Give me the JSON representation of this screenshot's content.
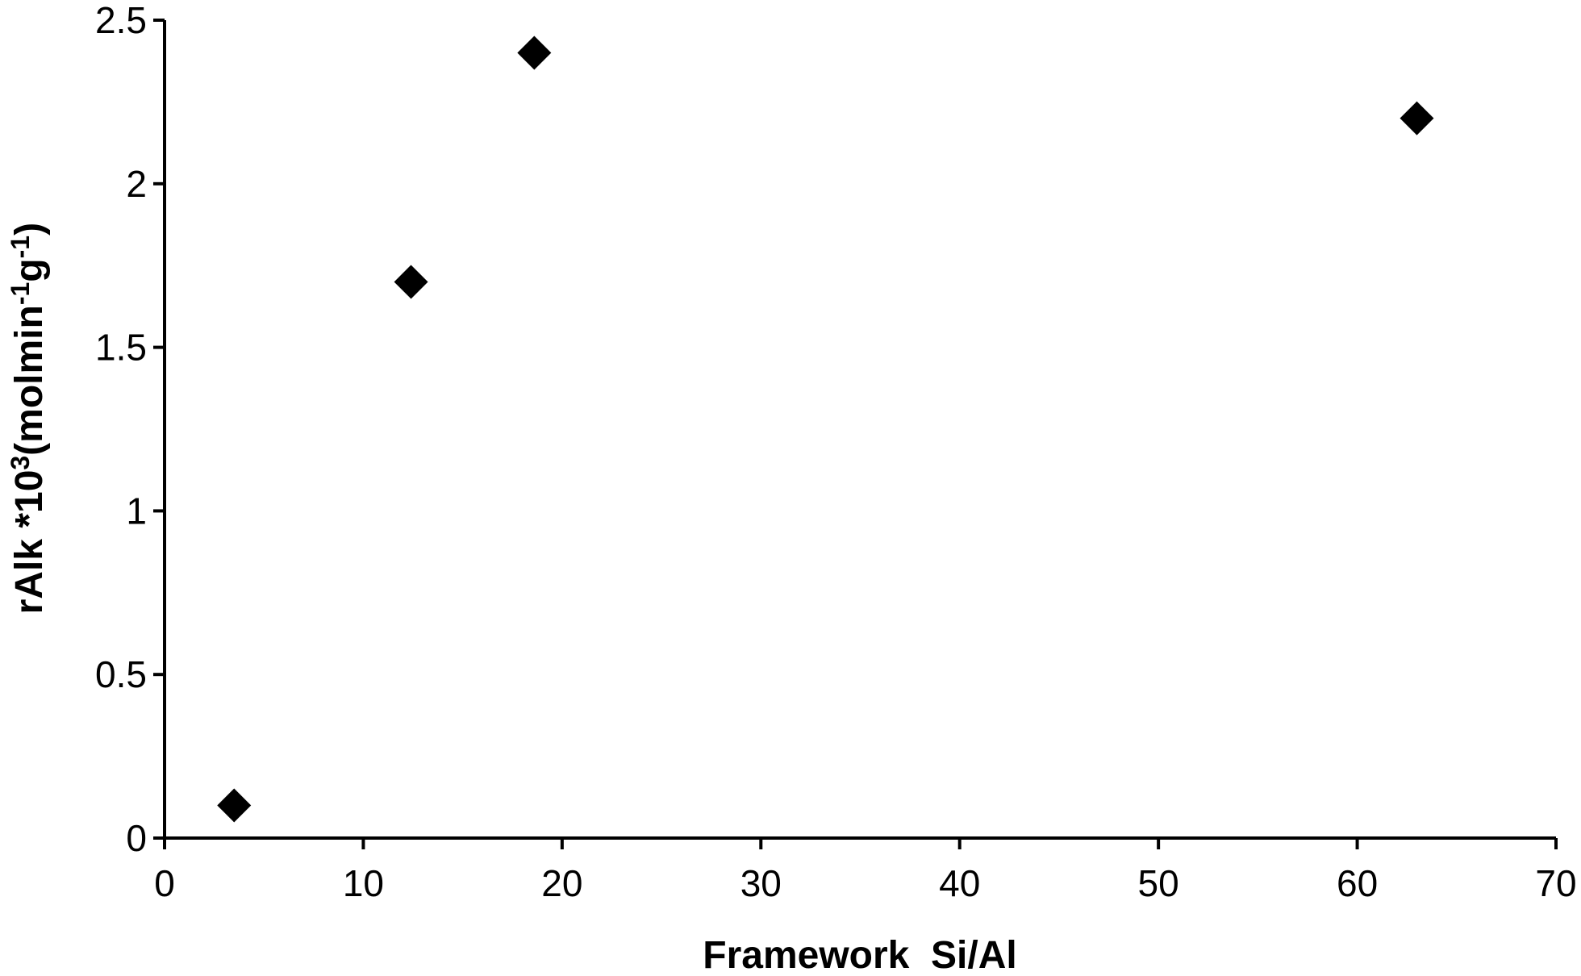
{
  "chart_data": {
    "type": "scatter",
    "x_label": "Framework  Si/Al",
    "y_label": [
      "rAlk *10",
      "3",
      "(molmin",
      "-1",
      "g",
      "-1",
      ")"
    ],
    "series": [
      {
        "color": "#000000",
        "marker": "diamond",
        "x": [
          3.5,
          12.4,
          18.6,
          63.0
        ],
        "values": [
          0.1,
          1.7,
          2.4,
          2.2
        ]
      }
    ],
    "xlim": [
      0,
      70
    ],
    "xticks": [
      0,
      10,
      20,
      30,
      40,
      50,
      60,
      70
    ],
    "ylim": [
      0,
      2.5
    ],
    "yticks": [
      0,
      0.5,
      1,
      1.5,
      2,
      2.5
    ],
    "grid": false
  }
}
